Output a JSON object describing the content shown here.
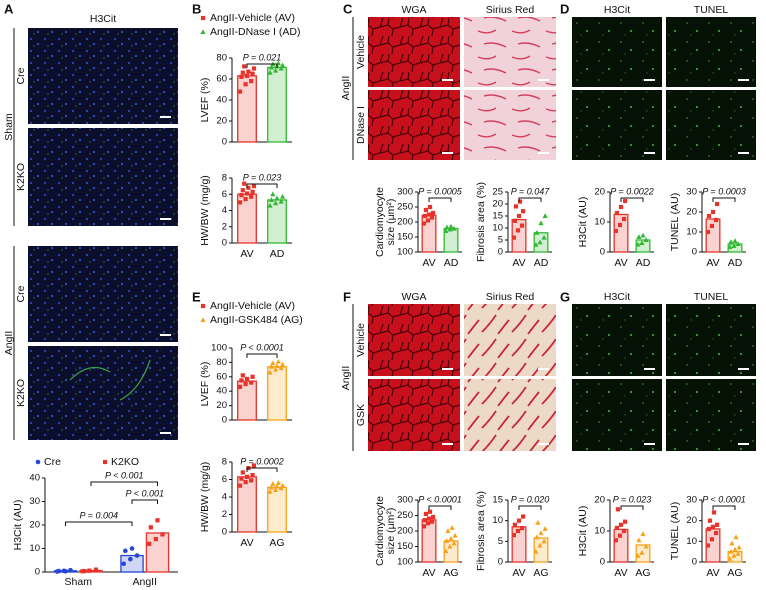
{
  "figure": {
    "panels": [
      {
        "label": "A",
        "image_columns": [
          "H3Cit"
        ],
        "groups": [
          {
            "name": "Sham",
            "rows": [
              "Cre",
              "K2KO"
            ]
          },
          {
            "name": "AngII",
            "rows": [
              "Cre",
              "K2KO"
            ]
          }
        ]
      },
      {
        "label": "B"
      },
      {
        "label": "C",
        "image_columns": [
          "WGA",
          "Sirius Red"
        ],
        "groups": [
          {
            "name": "AngII",
            "rows": [
              "Vehicle",
              "DNase I"
            ]
          }
        ]
      },
      {
        "label": "D",
        "image_columns": [
          "H3Cit",
          "TUNEL"
        ]
      },
      {
        "label": "E"
      },
      {
        "label": "F",
        "image_columns": [
          "WGA",
          "Sirius Red"
        ],
        "groups": [
          {
            "name": "AngII",
            "rows": [
              "Vehicle",
              "GSK"
            ]
          }
        ]
      },
      {
        "label": "G",
        "image_columns": [
          "H3Cit",
          "TUNEL"
        ]
      }
    ]
  },
  "chart_data": [
    {
      "type": "bar",
      "ylabel": [
        "H3Cit (AU)"
      ],
      "categories": [
        "Sham",
        "AngII"
      ],
      "series": [
        {
          "name": "Cre",
          "color": "#2546d6",
          "marker": "circle",
          "values": [
            0.5,
            7
          ],
          "points": [
            [
              0.2,
              0.5,
              0.8,
              0.4,
              0.3
            ],
            [
              3.5,
              5.5,
              7,
              9,
              10
            ]
          ]
        },
        {
          "name": "K2KO",
          "color": "#e8322a",
          "marker": "square",
          "values": [
            0.6,
            16.6
          ],
          "points": [
            [
              0.3,
              0.6,
              1.0,
              0.4
            ],
            [
              12,
              14,
              16,
              19,
              22
            ]
          ]
        }
      ],
      "ylim": [
        0,
        40
      ],
      "yticks": [
        0,
        10,
        20,
        30,
        40
      ],
      "comparisons": [
        "P = 0.004",
        "P < 0.001",
        "P < 0.001"
      ]
    },
    {
      "type": "bar",
      "ylabel": [
        "LVEF (%)"
      ],
      "values": [
        63,
        71
      ],
      "colors": [
        "#e8322a",
        "#33b833"
      ],
      "markers": [
        "square",
        "triangle"
      ],
      "points": [
        [
          48,
          55,
          58,
          62,
          63,
          65,
          66,
          67,
          70,
          72
        ],
        [
          66,
          68,
          70,
          71,
          72,
          73,
          74,
          75
        ]
      ],
      "ylim": [
        0,
        80
      ],
      "yticks": [
        0,
        20,
        40,
        60,
        80
      ],
      "comparisons": [
        "P = 0.021"
      ],
      "legend": [
        "AngII-Vehicle (AV)",
        "AngII-DNase I (AD)"
      ]
    },
    {
      "type": "bar",
      "ylabel": [
        "HW/BW (mg/g)"
      ],
      "categories": [
        "AV",
        "AD"
      ],
      "values": [
        6.0,
        5.3
      ],
      "colors": [
        "#e8322a",
        "#33b833"
      ],
      "markers": [
        "square",
        "triangle"
      ],
      "points": [
        [
          5.0,
          5.4,
          5.7,
          5.9,
          6.1,
          6.3,
          6.5,
          6.8,
          7.0,
          7.3
        ],
        [
          4.6,
          4.9,
          5.1,
          5.3,
          5.5,
          5.7,
          6.0
        ]
      ],
      "ylim": [
        0,
        8
      ],
      "yticks": [
        0,
        2,
        4,
        6,
        8
      ],
      "comparisons": [
        "P = 0.023"
      ]
    },
    {
      "type": "bar",
      "ylabel": [
        "Cardiomyocyte",
        "size (μm²)"
      ],
      "categories": [
        "AV",
        "AD"
      ],
      "values": [
        222,
        178
      ],
      "colors": [
        "#e8322a",
        "#33b833"
      ],
      "markers": [
        "square",
        "triangle"
      ],
      "points": [
        [
          195,
          205,
          215,
          220,
          225,
          230,
          240,
          250
        ],
        [
          170,
          175,
          178,
          182,
          185
        ]
      ],
      "ylim": [
        100,
        300
      ],
      "yticks": [
        100,
        150,
        200,
        250,
        300
      ],
      "comparisons": [
        "P = 0.0005"
      ]
    },
    {
      "type": "bar",
      "ylabel": [
        "Fibrosis area (%)"
      ],
      "categories": [
        "AV",
        "AD"
      ],
      "values": [
        13.5,
        8
      ],
      "colors": [
        "#e8322a",
        "#33b833"
      ],
      "markers": [
        "square",
        "triangle"
      ],
      "points": [
        [
          6,
          9,
          11,
          13,
          15,
          17,
          19,
          21
        ],
        [
          3,
          4,
          6,
          8,
          12,
          15
        ]
      ],
      "ylim": [
        0,
        25
      ],
      "yticks": [
        0,
        5,
        10,
        15,
        20,
        25
      ],
      "comparisons": [
        "P = 0.047"
      ]
    },
    {
      "type": "bar",
      "ylabel": [
        "H3Cit (AU)"
      ],
      "categories": [
        "AV",
        "AD"
      ],
      "values": [
        12.5,
        4
      ],
      "colors": [
        "#e8322a",
        "#33b833"
      ],
      "markers": [
        "square",
        "triangle"
      ],
      "points": [
        [
          7,
          9,
          11,
          13,
          15,
          17
        ],
        [
          2.5,
          3,
          4,
          5,
          5.5
        ]
      ],
      "ylim": [
        0,
        20
      ],
      "yticks": [
        0,
        10,
        20
      ],
      "comparisons": [
        "P = 0.0022"
      ]
    },
    {
      "type": "bar",
      "ylabel": [
        "TUNEL (AU)"
      ],
      "categories": [
        "AV",
        "AD"
      ],
      "values": [
        16.5,
        4
      ],
      "colors": [
        "#e8322a",
        "#33b833"
      ],
      "markers": [
        "square",
        "triangle"
      ],
      "points": [
        [
          10,
          13,
          16,
          18,
          20,
          24
        ],
        [
          2.5,
          3,
          4,
          5,
          5.5
        ]
      ],
      "ylim": [
        0,
        30
      ],
      "yticks": [
        0,
        10,
        20,
        30
      ],
      "comparisons": [
        "P = 0.0003"
      ]
    },
    {
      "type": "bar",
      "ylabel": [
        "LVEF (%)"
      ],
      "values": [
        54,
        74
      ],
      "colors": [
        "#e8322a",
        "#f7a21b"
      ],
      "markers": [
        "square",
        "triangle"
      ],
      "points": [
        [
          46,
          50,
          52,
          55,
          57,
          60,
          62
        ],
        [
          66,
          70,
          72,
          74,
          75,
          77,
          79,
          81
        ]
      ],
      "ylim": [
        0,
        100
      ],
      "yticks": [
        0,
        20,
        40,
        60,
        80,
        100
      ],
      "comparisons": [
        "P < 0.0001"
      ],
      "legend": [
        "AngII-Vehicle (AV)",
        "AngII-GSK484 (AG)"
      ]
    },
    {
      "type": "bar",
      "ylabel": [
        "HW/BW (mg/g)"
      ],
      "categories": [
        "AV",
        "AG"
      ],
      "values": [
        6.3,
        5.1
      ],
      "colors": [
        "#e8322a",
        "#f7a21b"
      ],
      "markers": [
        "square",
        "triangle"
      ],
      "points": [
        [
          5.3,
          5.7,
          5.9,
          6.1,
          6.3,
          6.5,
          6.8,
          7.3,
          7.6
        ],
        [
          4.6,
          4.8,
          5.0,
          5.1,
          5.2,
          5.3,
          5.5,
          5.6
        ]
      ],
      "ylim": [
        0,
        8
      ],
      "yticks": [
        0,
        2,
        4,
        6,
        8
      ],
      "comparisons": [
        "P = 0.0002"
      ]
    },
    {
      "type": "bar",
      "ylabel": [
        "Cardiomyocyte",
        "size (μm²)"
      ],
      "categories": [
        "AV",
        "AG"
      ],
      "values": [
        236,
        168
      ],
      "colors": [
        "#e8322a",
        "#f7a21b"
      ],
      "markers": [
        "square",
        "triangle"
      ],
      "points": [
        [
          215,
          225,
          230,
          235,
          240,
          245,
          255,
          262
        ],
        [
          135,
          150,
          160,
          168,
          175,
          185,
          200,
          210
        ]
      ],
      "ylim": [
        100,
        300
      ],
      "yticks": [
        100,
        150,
        200,
        250,
        300
      ],
      "comparisons": [
        "P < 0.0001"
      ]
    },
    {
      "type": "bar",
      "ylabel": [
        "Fibrosis area (%)"
      ],
      "categories": [
        "AV",
        "AG"
      ],
      "values": [
        8.5,
        5.8
      ],
      "colors": [
        "#e8322a",
        "#f7a21b"
      ],
      "markers": [
        "square",
        "triangle"
      ],
      "points": [
        [
          6.5,
          7.5,
          8.2,
          9,
          10,
          11
        ],
        [
          2.5,
          4,
          5,
          6,
          7,
          8,
          9.5
        ]
      ],
      "ylim": [
        0,
        15
      ],
      "yticks": [
        0,
        5,
        10,
        15
      ],
      "comparisons": [
        "P = 0.020"
      ]
    },
    {
      "type": "bar",
      "ylabel": [
        "H3Cit (AU)"
      ],
      "categories": [
        "AV",
        "AG"
      ],
      "values": [
        10.5,
        5.5
      ],
      "colors": [
        "#e8322a",
        "#f7a21b"
      ],
      "markers": [
        "square",
        "triangle"
      ],
      "points": [
        [
          7,
          8.5,
          10,
          11,
          12,
          13,
          17
        ],
        [
          2,
          3,
          5,
          7,
          9
        ]
      ],
      "ylim": [
        0,
        20
      ],
      "yticks": [
        0,
        10,
        20
      ],
      "comparisons": [
        "P = 0.023"
      ]
    },
    {
      "type": "bar",
      "ylabel": [
        "TUNEL (AU)"
      ],
      "categories": [
        "AV",
        "AG"
      ],
      "values": [
        16,
        5
      ],
      "colors": [
        "#e8322a",
        "#f7a21b"
      ],
      "markers": [
        "square",
        "triangle"
      ],
      "points": [
        [
          8,
          11,
          14,
          16,
          17,
          18,
          20,
          24
        ],
        [
          1.5,
          3,
          4,
          5,
          6,
          7,
          9,
          12
        ]
      ],
      "ylim": [
        0,
        30
      ],
      "yticks": [
        0,
        10,
        20,
        30
      ],
      "comparisons": [
        "P < 0.0001"
      ]
    }
  ]
}
